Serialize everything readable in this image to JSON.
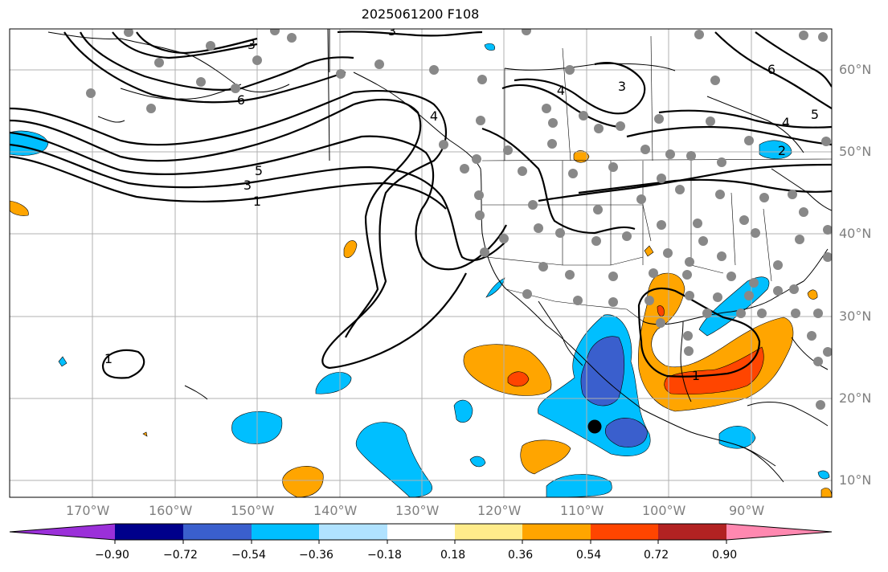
{
  "title": "2025061200 F108",
  "lat_labels": [
    "60°N",
    "50°N",
    "40°N",
    "30°N",
    "20°N",
    "10°N"
  ],
  "lon_labels": [
    "170°W",
    "160°W",
    "150°W",
    "140°W",
    "130°W",
    "120°W",
    "110°W",
    "100°W",
    "90°W"
  ],
  "contour_labels": [
    "3",
    "6",
    "5",
    "3",
    "1",
    "1",
    "4",
    "3",
    "4",
    "3",
    "4",
    "2",
    "6",
    "5",
    "1"
  ],
  "colorbar": {
    "tick_labels": [
      "−0.90",
      "−0.72",
      "−0.54",
      "−0.36",
      "−0.18",
      "0.18",
      "0.36",
      "0.54",
      "0.72",
      "0.90"
    ],
    "colors": [
      "#9b30d9",
      "#00008b",
      "#3a5fcd",
      "#00bfff",
      "#b0e2ff",
      "#ffffff",
      "#ffec8b",
      "#ffa500",
      "#ff4500",
      "#b22222",
      "#ff88b0"
    ]
  },
  "fill_colors": {
    "neg_strong": "#3a5fcd",
    "neg_mid": "#00bfff",
    "pos_mid": "#ffa500",
    "pos_strong": "#ff4500"
  },
  "marker": "black-dot"
}
